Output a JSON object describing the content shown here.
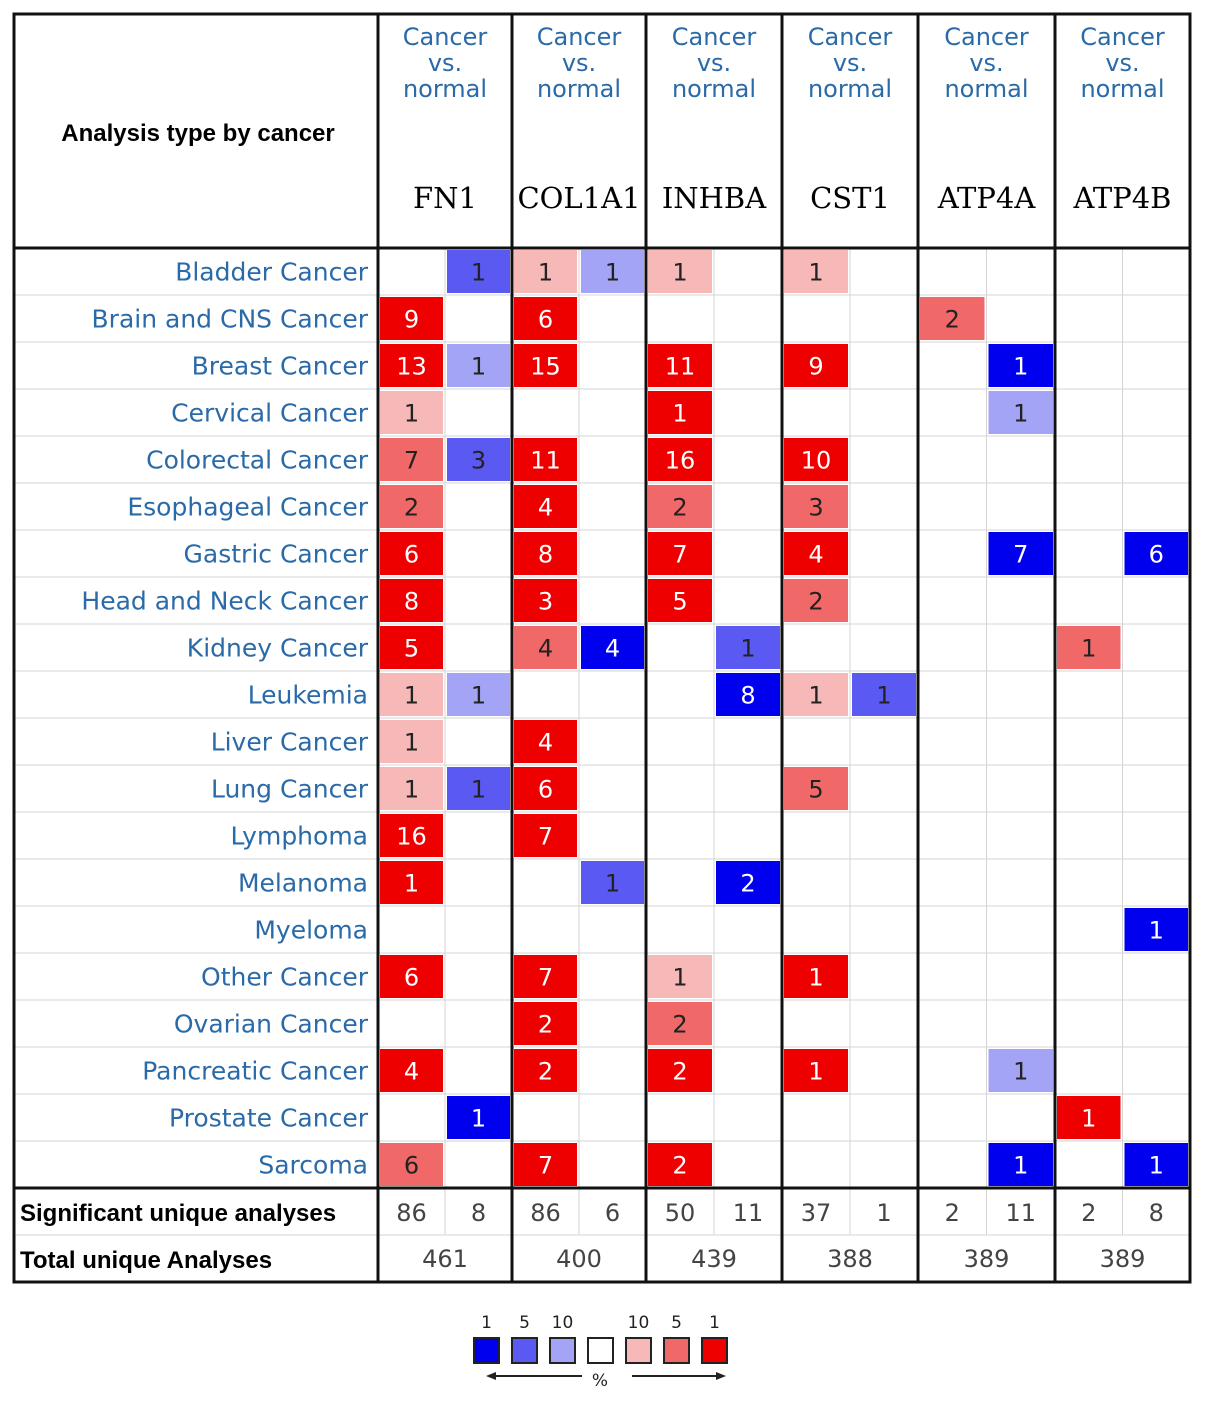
{
  "chart_data": {
    "type": "heatmap",
    "header": {
      "title": "Analysis type by cancer",
      "analysis_label": [
        "Cancer",
        "vs.",
        "normal"
      ]
    },
    "genes": [
      "FN1",
      "COL1A1",
      "INHBA",
      "CST1",
      "ATP4A",
      "ATP4B"
    ],
    "cancers": [
      "Bladder Cancer",
      "Brain and CNS Cancer",
      "Breast Cancer",
      "Cervical Cancer",
      "Colorectal Cancer",
      "Esophageal Cancer",
      "Gastric Cancer",
      "Head and Neck Cancer",
      "Kidney Cancer",
      "Leukemia",
      "Liver Cancer",
      "Lung Cancer",
      "Lymphoma",
      "Melanoma",
      "Myeloma",
      "Other Cancer",
      "Ovarian Cancer",
      "Pancreatic Cancer",
      "Prostate Cancer",
      "Sarcoma"
    ],
    "colors": {
      "up": [
        "#ee0000",
        "#f06868",
        "#f7b8b8"
      ],
      "down": [
        "#0000ee",
        "#5a5af2",
        "#a4a4f6"
      ],
      "blank": "#ffffff",
      "label": "#2a6aa8"
    },
    "cells": [
      {
        "row": 0,
        "gene": 0,
        "dir": "down",
        "value": 1,
        "level": 1
      },
      {
        "row": 0,
        "gene": 1,
        "dir": "up",
        "value": 1,
        "level": 2
      },
      {
        "row": 0,
        "gene": 1,
        "dir": "down",
        "value": 1,
        "level": 2
      },
      {
        "row": 0,
        "gene": 2,
        "dir": "up",
        "value": 1,
        "level": 2
      },
      {
        "row": 0,
        "gene": 3,
        "dir": "up",
        "value": 1,
        "level": 2
      },
      {
        "row": 1,
        "gene": 0,
        "dir": "up",
        "value": 9,
        "level": 0
      },
      {
        "row": 1,
        "gene": 1,
        "dir": "up",
        "value": 6,
        "level": 0
      },
      {
        "row": 1,
        "gene": 4,
        "dir": "up",
        "value": 2,
        "level": 1
      },
      {
        "row": 2,
        "gene": 0,
        "dir": "up",
        "value": 13,
        "level": 0
      },
      {
        "row": 2,
        "gene": 0,
        "dir": "down",
        "value": 1,
        "level": 2
      },
      {
        "row": 2,
        "gene": 1,
        "dir": "up",
        "value": 15,
        "level": 0
      },
      {
        "row": 2,
        "gene": 2,
        "dir": "up",
        "value": 11,
        "level": 0
      },
      {
        "row": 2,
        "gene": 3,
        "dir": "up",
        "value": 9,
        "level": 0
      },
      {
        "row": 2,
        "gene": 4,
        "dir": "down",
        "value": 1,
        "level": 0
      },
      {
        "row": 3,
        "gene": 0,
        "dir": "up",
        "value": 1,
        "level": 2
      },
      {
        "row": 3,
        "gene": 2,
        "dir": "up",
        "value": 1,
        "level": 0
      },
      {
        "row": 3,
        "gene": 4,
        "dir": "down",
        "value": 1,
        "level": 2
      },
      {
        "row": 4,
        "gene": 0,
        "dir": "up",
        "value": 7,
        "level": 1
      },
      {
        "row": 4,
        "gene": 0,
        "dir": "down",
        "value": 3,
        "level": 1
      },
      {
        "row": 4,
        "gene": 1,
        "dir": "up",
        "value": 11,
        "level": 0
      },
      {
        "row": 4,
        "gene": 2,
        "dir": "up",
        "value": 16,
        "level": 0
      },
      {
        "row": 4,
        "gene": 3,
        "dir": "up",
        "value": 10,
        "level": 0
      },
      {
        "row": 5,
        "gene": 0,
        "dir": "up",
        "value": 2,
        "level": 1
      },
      {
        "row": 5,
        "gene": 1,
        "dir": "up",
        "value": 4,
        "level": 0
      },
      {
        "row": 5,
        "gene": 2,
        "dir": "up",
        "value": 2,
        "level": 1
      },
      {
        "row": 5,
        "gene": 3,
        "dir": "up",
        "value": 3,
        "level": 1
      },
      {
        "row": 6,
        "gene": 0,
        "dir": "up",
        "value": 6,
        "level": 0
      },
      {
        "row": 6,
        "gene": 1,
        "dir": "up",
        "value": 8,
        "level": 0
      },
      {
        "row": 6,
        "gene": 2,
        "dir": "up",
        "value": 7,
        "level": 0
      },
      {
        "row": 6,
        "gene": 3,
        "dir": "up",
        "value": 4,
        "level": 0
      },
      {
        "row": 6,
        "gene": 4,
        "dir": "down",
        "value": 7,
        "level": 0
      },
      {
        "row": 6,
        "gene": 5,
        "dir": "down",
        "value": 6,
        "level": 0
      },
      {
        "row": 7,
        "gene": 0,
        "dir": "up",
        "value": 8,
        "level": 0
      },
      {
        "row": 7,
        "gene": 1,
        "dir": "up",
        "value": 3,
        "level": 0
      },
      {
        "row": 7,
        "gene": 2,
        "dir": "up",
        "value": 5,
        "level": 0
      },
      {
        "row": 7,
        "gene": 3,
        "dir": "up",
        "value": 2,
        "level": 1
      },
      {
        "row": 8,
        "gene": 0,
        "dir": "up",
        "value": 5,
        "level": 0
      },
      {
        "row": 8,
        "gene": 1,
        "dir": "up",
        "value": 4,
        "level": 1
      },
      {
        "row": 8,
        "gene": 1,
        "dir": "down",
        "value": 4,
        "level": 0
      },
      {
        "row": 8,
        "gene": 2,
        "dir": "down",
        "value": 1,
        "level": 1
      },
      {
        "row": 8,
        "gene": 5,
        "dir": "up",
        "value": 1,
        "level": 1
      },
      {
        "row": 9,
        "gene": 0,
        "dir": "up",
        "value": 1,
        "level": 2
      },
      {
        "row": 9,
        "gene": 0,
        "dir": "down",
        "value": 1,
        "level": 2
      },
      {
        "row": 9,
        "gene": 2,
        "dir": "down",
        "value": 8,
        "level": 0
      },
      {
        "row": 9,
        "gene": 3,
        "dir": "up",
        "value": 1,
        "level": 2
      },
      {
        "row": 9,
        "gene": 3,
        "dir": "down",
        "value": 1,
        "level": 1
      },
      {
        "row": 10,
        "gene": 0,
        "dir": "up",
        "value": 1,
        "level": 2
      },
      {
        "row": 10,
        "gene": 1,
        "dir": "up",
        "value": 4,
        "level": 0
      },
      {
        "row": 11,
        "gene": 0,
        "dir": "up",
        "value": 1,
        "level": 2
      },
      {
        "row": 11,
        "gene": 0,
        "dir": "down",
        "value": 1,
        "level": 1
      },
      {
        "row": 11,
        "gene": 1,
        "dir": "up",
        "value": 6,
        "level": 0
      },
      {
        "row": 11,
        "gene": 3,
        "dir": "up",
        "value": 5,
        "level": 1
      },
      {
        "row": 12,
        "gene": 0,
        "dir": "up",
        "value": 16,
        "level": 0
      },
      {
        "row": 12,
        "gene": 1,
        "dir": "up",
        "value": 7,
        "level": 0
      },
      {
        "row": 13,
        "gene": 0,
        "dir": "up",
        "value": 1,
        "level": 0
      },
      {
        "row": 13,
        "gene": 1,
        "dir": "down",
        "value": 1,
        "level": 1
      },
      {
        "row": 13,
        "gene": 2,
        "dir": "down",
        "value": 2,
        "level": 0
      },
      {
        "row": 14,
        "gene": 5,
        "dir": "down",
        "value": 1,
        "level": 0
      },
      {
        "row": 15,
        "gene": 0,
        "dir": "up",
        "value": 6,
        "level": 0
      },
      {
        "row": 15,
        "gene": 1,
        "dir": "up",
        "value": 7,
        "level": 0
      },
      {
        "row": 15,
        "gene": 2,
        "dir": "up",
        "value": 1,
        "level": 2
      },
      {
        "row": 15,
        "gene": 3,
        "dir": "up",
        "value": 1,
        "level": 0
      },
      {
        "row": 16,
        "gene": 1,
        "dir": "up",
        "value": 2,
        "level": 0
      },
      {
        "row": 16,
        "gene": 2,
        "dir": "up",
        "value": 2,
        "level": 1
      },
      {
        "row": 17,
        "gene": 0,
        "dir": "up",
        "value": 4,
        "level": 0
      },
      {
        "row": 17,
        "gene": 1,
        "dir": "up",
        "value": 2,
        "level": 0
      },
      {
        "row": 17,
        "gene": 2,
        "dir": "up",
        "value": 2,
        "level": 0
      },
      {
        "row": 17,
        "gene": 3,
        "dir": "up",
        "value": 1,
        "level": 0
      },
      {
        "row": 17,
        "gene": 4,
        "dir": "down",
        "value": 1,
        "level": 2
      },
      {
        "row": 18,
        "gene": 0,
        "dir": "down",
        "value": 1,
        "level": 0
      },
      {
        "row": 18,
        "gene": 5,
        "dir": "up",
        "value": 1,
        "level": 0
      },
      {
        "row": 19,
        "gene": 0,
        "dir": "up",
        "value": 6,
        "level": 1
      },
      {
        "row": 19,
        "gene": 1,
        "dir": "up",
        "value": 7,
        "level": 0
      },
      {
        "row": 19,
        "gene": 2,
        "dir": "up",
        "value": 2,
        "level": 0
      },
      {
        "row": 19,
        "gene": 4,
        "dir": "down",
        "value": 1,
        "level": 0
      },
      {
        "row": 19,
        "gene": 5,
        "dir": "down",
        "value": 1,
        "level": 0
      }
    ],
    "summary": {
      "significant_label": "Significant unique analyses",
      "total_label": "Total unique Analyses",
      "significant": [
        [
          86,
          8
        ],
        [
          86,
          6
        ],
        [
          50,
          11
        ],
        [
          37,
          1
        ],
        [
          2,
          11
        ],
        [
          2,
          8
        ]
      ],
      "total": [
        461,
        400,
        439,
        388,
        389,
        389
      ]
    },
    "legend": {
      "labels": [
        "1",
        "5",
        "10",
        "",
        "10",
        "5",
        "1"
      ],
      "colors": [
        "#0000ee",
        "#5a5af2",
        "#a4a4f6",
        "#ffffff",
        "#f7b8b8",
        "#f06868",
        "#ee0000"
      ],
      "axis_label": "%"
    }
  }
}
